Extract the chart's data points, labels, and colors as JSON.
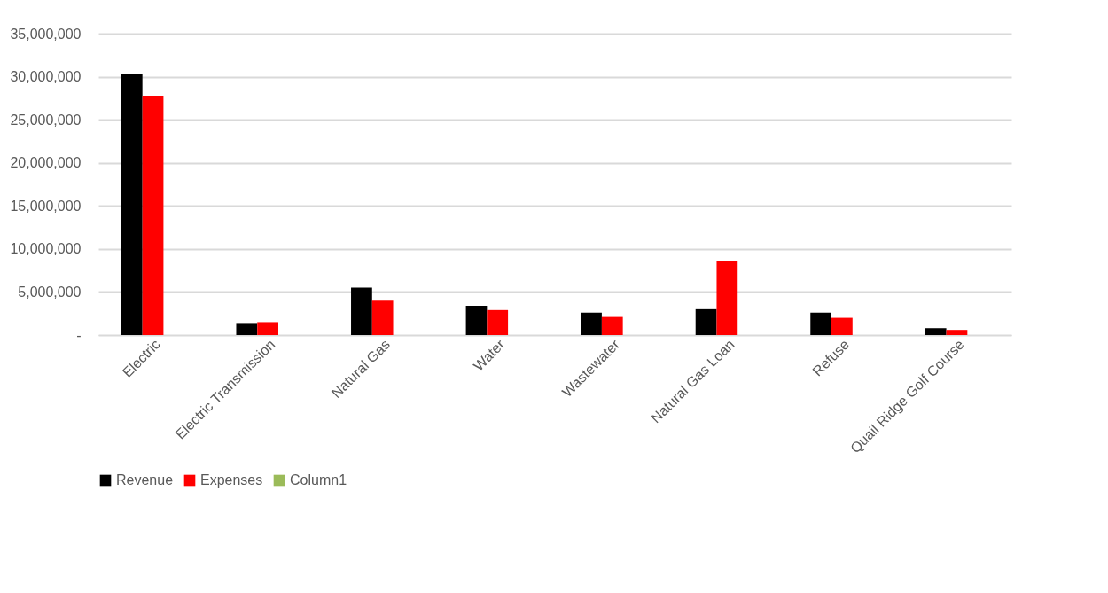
{
  "chart_data": {
    "type": "bar",
    "categories": [
      "Electric",
      "Electric Transmission",
      "Natural Gas",
      "Water",
      "Wastewater",
      "Natural Gas Loan",
      "Refuse",
      "Quail Ridge Golf Course"
    ],
    "series": [
      {
        "name": "Revenue",
        "color": "#000000",
        "values": [
          30300000,
          1400000,
          5500000,
          3400000,
          2600000,
          3000000,
          2600000,
          800000
        ]
      },
      {
        "name": "Expenses",
        "color": "#ff0000",
        "values": [
          27800000,
          1500000,
          4000000,
          2900000,
          2100000,
          8600000,
          2000000,
          600000
        ]
      },
      {
        "name": "Column1",
        "color": "#9bbb59",
        "values": [
          null,
          null,
          null,
          null,
          null,
          null,
          null,
          null
        ]
      }
    ],
    "ylim": [
      0,
      35000000
    ],
    "yticks": [
      {
        "value": 0,
        "label": "-"
      },
      {
        "value": 5000000,
        "label": "5,000,000"
      },
      {
        "value": 10000000,
        "label": "10,000,000"
      },
      {
        "value": 15000000,
        "label": "15,000,000"
      },
      {
        "value": 20000000,
        "label": "20,000,000"
      },
      {
        "value": 25000000,
        "label": "25,000,000"
      },
      {
        "value": 30000000,
        "label": "30,000,000"
      },
      {
        "value": 35000000,
        "label": "35,000,000"
      }
    ],
    "grid": "y",
    "legend": "bottom"
  }
}
